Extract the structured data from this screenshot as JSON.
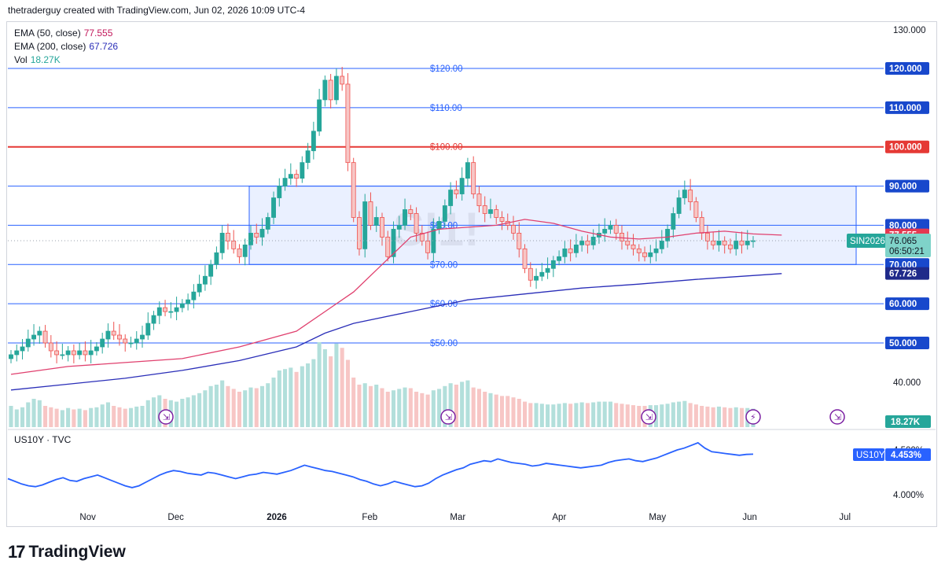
{
  "header": {
    "text": "thetraderguy created with TradingView.com, Jun 02, 2026 10:09 UTC-4"
  },
  "legend": {
    "ema50": {
      "label": "EMA (50, close)",
      "value": "77.555",
      "color": "#c2185b"
    },
    "ema200": {
      "label": "EMA (200, close)",
      "value": "67.726",
      "color": "#2a2eb8"
    },
    "vol": {
      "label": "Vol",
      "value": "18.27K",
      "color": "#26a69a"
    }
  },
  "sub_pane": {
    "title": "US10Y · TVC"
  },
  "brand": {
    "name": "TradingView"
  },
  "watermark": "SI1!",
  "colors": {
    "up": "#26a69a",
    "down": "#ef5350",
    "ema50": "#e0406e",
    "ema200": "#2a2eb8",
    "hline": "#2962ff",
    "resistance": "#e53935",
    "box_fill": "#e8eeff",
    "us10y": "#2962ff"
  },
  "chart_data": [
    {
      "type": "candlestick",
      "title": "",
      "x_ticks": [
        "Nov",
        "Dec",
        "2026",
        "Feb",
        "Mar",
        "Apr",
        "May",
        "Jun",
        "Jul"
      ],
      "y_ticks": [
        "130.000",
        "40.000"
      ],
      "ylim": [
        35,
        130
      ],
      "horizontal_levels": [
        {
          "value": 120,
          "label": "$120.00",
          "axis_label": "120.000",
          "color": "#2962ff"
        },
        {
          "value": 110,
          "label": "$110.00",
          "axis_label": "110.000",
          "color": "#2962ff"
        },
        {
          "value": 100,
          "label": "$100.00",
          "axis_label": "100.000",
          "color": "#e53935"
        },
        {
          "value": 90,
          "label": "",
          "axis_label": "90.000",
          "color": "#2962ff"
        },
        {
          "value": 80,
          "label": "$80.00",
          "axis_label": "80.000",
          "color": "#2962ff"
        },
        {
          "value": 70,
          "label": "$70.00",
          "axis_label": "70.000",
          "color": "#2962ff"
        },
        {
          "value": 60,
          "label": "$60.00",
          "axis_label": "60.000",
          "color": "#2962ff"
        },
        {
          "value": 50,
          "label": "$50.00",
          "axis_label": "50.000",
          "color": "#2962ff"
        }
      ],
      "range_box": {
        "y_low": 70,
        "y_high": 90,
        "x_from": "2025-12-25",
        "x_to": "2026-06-30"
      },
      "last_price": {
        "symbol": "SIN2026",
        "value": "76.065",
        "countdown": "06:50:21"
      },
      "ema_labels": {
        "ema50": "77.555",
        "ema200": "67.726"
      },
      "volume_label": "18.27K",
      "series": [
        {
          "name": "EMA (50, close)",
          "points": [
            [
              0,
              42
            ],
            [
              10,
              44
            ],
            [
              20,
              45
            ],
            [
              30,
              46
            ],
            [
              40,
              49
            ],
            [
              50,
              53
            ],
            [
              55,
              58
            ],
            [
              60,
              63
            ],
            [
              65,
              70
            ],
            [
              70,
              77
            ],
            [
              75,
              79
            ],
            [
              80,
              79.5
            ],
            [
              85,
              80
            ],
            [
              90,
              81.5
            ],
            [
              95,
              80.5
            ],
            [
              100,
              78.5
            ],
            [
              105,
              77
            ],
            [
              110,
              76.5
            ],
            [
              115,
              77
            ],
            [
              120,
              78
            ],
            [
              125,
              78.5
            ],
            [
              130,
              77.8
            ],
            [
              135,
              77.5
            ]
          ]
        },
        {
          "name": "EMA (200, close)",
          "points": [
            [
              0,
              38
            ],
            [
              10,
              39.5
            ],
            [
              20,
              41
            ],
            [
              30,
              43
            ],
            [
              40,
              45.5
            ],
            [
              50,
              49
            ],
            [
              55,
              52.5
            ],
            [
              60,
              55
            ],
            [
              70,
              58
            ],
            [
              80,
              61
            ],
            [
              90,
              62.5
            ],
            [
              100,
              64
            ],
            [
              110,
              65
            ],
            [
              120,
              66.2
            ],
            [
              135,
              67.7
            ]
          ]
        }
      ],
      "candles_close": [
        47,
        48,
        49,
        51,
        52,
        53,
        50,
        48,
        47,
        47,
        48,
        47,
        48,
        47,
        48,
        49,
        51,
        53,
        52,
        51,
        50,
        50,
        51,
        52,
        55,
        57,
        59,
        58,
        58,
        59,
        60,
        61,
        63,
        65,
        67,
        70,
        73,
        78,
        76,
        74,
        72,
        75,
        78,
        77,
        79,
        82,
        87,
        90,
        92,
        93,
        92,
        96,
        99,
        104,
        112,
        117,
        112,
        118,
        116,
        96,
        82,
        74,
        86,
        80,
        82,
        77,
        72,
        79,
        80,
        84,
        83,
        78,
        76,
        73,
        79,
        81,
        85,
        89,
        88,
        92,
        96,
        88,
        85,
        83,
        84,
        82,
        81,
        80,
        78,
        74,
        69,
        66,
        67,
        68,
        69,
        71,
        72,
        74,
        73,
        75,
        76,
        75,
        77,
        78,
        79,
        80,
        78,
        76,
        75,
        74,
        73,
        72,
        73,
        74,
        76,
        79,
        83,
        87,
        89,
        86,
        82,
        78,
        76,
        75,
        76,
        75,
        74,
        76,
        75,
        76,
        76.065
      ],
      "volume": [
        30,
        25,
        28,
        35,
        40,
        38,
        30,
        28,
        26,
        24,
        27,
        25,
        26,
        24,
        27,
        28,
        32,
        35,
        30,
        28,
        26,
        27,
        29,
        30,
        38,
        42,
        45,
        40,
        38,
        36,
        40,
        42,
        45,
        48,
        52,
        58,
        60,
        66,
        58,
        54,
        50,
        52,
        56,
        55,
        58,
        62,
        70,
        80,
        82,
        84,
        78,
        86,
        90,
        96,
        120,
        110,
        100,
        118,
        112,
        95,
        70,
        60,
        62,
        58,
        60,
        55,
        50,
        52,
        54,
        56,
        55,
        50,
        48,
        46,
        52,
        54,
        58,
        62,
        60,
        64,
        66,
        56,
        54,
        50,
        48,
        46,
        44,
        44,
        42,
        40,
        36,
        34,
        34,
        33,
        32,
        32,
        33,
        34,
        33,
        34,
        35,
        34,
        35,
        36,
        36,
        36,
        34,
        33,
        32,
        31,
        30,
        30,
        31,
        31,
        32,
        33,
        35,
        36,
        37,
        34,
        32,
        30,
        29,
        28,
        29,
        28,
        27,
        28,
        27,
        27,
        26
      ]
    },
    {
      "type": "line",
      "title": "US10Y · TVC",
      "y_ticks": [
        "4.500%",
        "4.000%"
      ],
      "last_label": {
        "symbol": "US10Y",
        "value": "4.453%"
      },
      "values": [
        4.18,
        4.15,
        4.12,
        4.1,
        4.09,
        4.11,
        4.14,
        4.17,
        4.19,
        4.16,
        4.15,
        4.18,
        4.2,
        4.22,
        4.19,
        4.16,
        4.13,
        4.1,
        4.08,
        4.1,
        4.14,
        4.18,
        4.22,
        4.25,
        4.27,
        4.26,
        4.24,
        4.23,
        4.22,
        4.25,
        4.24,
        4.22,
        4.2,
        4.18,
        4.2,
        4.22,
        4.23,
        4.25,
        4.24,
        4.23,
        4.25,
        4.27,
        4.3,
        4.33,
        4.31,
        4.29,
        4.27,
        4.26,
        4.24,
        4.22,
        4.2,
        4.17,
        4.15,
        4.12,
        4.1,
        4.12,
        4.15,
        4.13,
        4.11,
        4.09,
        4.1,
        4.13,
        4.18,
        4.22,
        4.25,
        4.28,
        4.3,
        4.34,
        4.36,
        4.38,
        4.37,
        4.4,
        4.38,
        4.36,
        4.35,
        4.34,
        4.32,
        4.33,
        4.35,
        4.34,
        4.33,
        4.32,
        4.31,
        4.3,
        4.31,
        4.32,
        4.33,
        4.36,
        4.38,
        4.39,
        4.4,
        4.38,
        4.37,
        4.39,
        4.41,
        4.44,
        4.47,
        4.5,
        4.52,
        4.55,
        4.58,
        4.52,
        4.48,
        4.47,
        4.46,
        4.45,
        4.44,
        4.45,
        4.453
      ]
    }
  ]
}
